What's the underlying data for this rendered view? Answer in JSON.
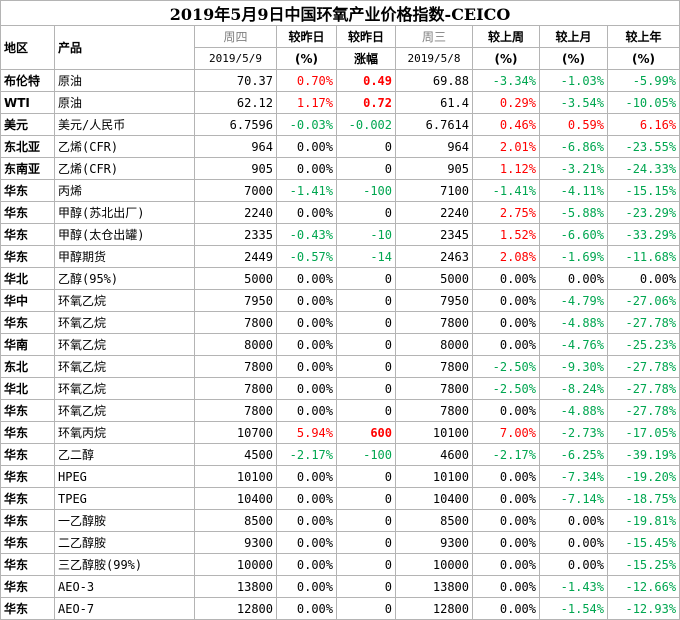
{
  "title": "2019年5月9日中国环氧产业价格指数-CEICO",
  "headers": {
    "region": "地区",
    "product": "产品",
    "day_today": "周四",
    "date_today": "2019/5/9",
    "vs_prev_pct": "较昨日",
    "vs_prev_pct_unit": "(%)",
    "vs_prev_abs": "较昨日",
    "vs_prev_abs_unit": "涨幅",
    "day_prev": "周三",
    "date_prev": "2019/5/8",
    "vs_week": "较上周",
    "vs_week_unit": "(%)",
    "vs_month": "较上月",
    "vs_month_unit": "(%)",
    "vs_year": "较上年",
    "vs_year_unit": "(%)"
  },
  "rows": [
    {
      "region": "布伦特",
      "product": "原油",
      "today": "70.37",
      "pct": "0.70%",
      "pct_sign": "pos",
      "abs": "0.49",
      "abs_sign": "pos",
      "abs_bold": true,
      "prev": "69.88",
      "week": "-3.34%",
      "week_sign": "neg",
      "month": "-1.03%",
      "month_sign": "neg",
      "year": "-5.99%",
      "year_sign": "neg"
    },
    {
      "region": "WTI",
      "product": "原油",
      "today": "62.12",
      "pct": "1.17%",
      "pct_sign": "pos",
      "abs": "0.72",
      "abs_sign": "pos",
      "abs_bold": true,
      "prev": "61.4",
      "week": "0.29%",
      "week_sign": "pos",
      "month": "-3.54%",
      "month_sign": "neg",
      "year": "-10.05%",
      "year_sign": "neg"
    },
    {
      "region": "美元",
      "product": "美元/人民币",
      "today": "6.7596",
      "pct": "-0.03%",
      "pct_sign": "neg",
      "abs": "-0.002",
      "abs_sign": "neg",
      "abs_bold": false,
      "prev": "6.7614",
      "week": "0.46%",
      "week_sign": "pos",
      "month": "0.59%",
      "month_sign": "pos",
      "year": "6.16%",
      "year_sign": "pos"
    },
    {
      "region": "东北亚",
      "product": "乙烯(CFR)",
      "today": "964",
      "pct": "0.00%",
      "pct_sign": "",
      "abs": "0",
      "abs_sign": "",
      "abs_bold": false,
      "prev": "964",
      "week": "2.01%",
      "week_sign": "pos",
      "month": "-6.86%",
      "month_sign": "neg",
      "year": "-23.55%",
      "year_sign": "neg"
    },
    {
      "region": "东南亚",
      "product": "乙烯(CFR)",
      "today": "905",
      "pct": "0.00%",
      "pct_sign": "",
      "abs": "0",
      "abs_sign": "",
      "abs_bold": false,
      "prev": "905",
      "week": "1.12%",
      "week_sign": "pos",
      "month": "-3.21%",
      "month_sign": "neg",
      "year": "-24.33%",
      "year_sign": "neg"
    },
    {
      "region": "华东",
      "product": "丙烯",
      "today": "7000",
      "pct": "-1.41%",
      "pct_sign": "neg",
      "abs": "-100",
      "abs_sign": "neg",
      "abs_bold": false,
      "prev": "7100",
      "week": "-1.41%",
      "week_sign": "neg",
      "month": "-4.11%",
      "month_sign": "neg",
      "year": "-15.15%",
      "year_sign": "neg"
    },
    {
      "region": "华东",
      "product": "甲醇(苏北出厂)",
      "today": "2240",
      "pct": "0.00%",
      "pct_sign": "",
      "abs": "0",
      "abs_sign": "",
      "abs_bold": false,
      "prev": "2240",
      "week": "2.75%",
      "week_sign": "pos",
      "month": "-5.88%",
      "month_sign": "neg",
      "year": "-23.29%",
      "year_sign": "neg"
    },
    {
      "region": "华东",
      "product": "甲醇(太仓出罐)",
      "today": "2335",
      "pct": "-0.43%",
      "pct_sign": "neg",
      "abs": "-10",
      "abs_sign": "neg",
      "abs_bold": false,
      "prev": "2345",
      "week": "1.52%",
      "week_sign": "pos",
      "month": "-6.60%",
      "month_sign": "neg",
      "year": "-33.29%",
      "year_sign": "neg"
    },
    {
      "region": "华东",
      "product": "甲醇期货",
      "today": "2449",
      "pct": "-0.57%",
      "pct_sign": "neg",
      "abs": "-14",
      "abs_sign": "neg",
      "abs_bold": false,
      "prev": "2463",
      "week": "2.08%",
      "week_sign": "pos",
      "month": "-1.69%",
      "month_sign": "neg",
      "year": "-11.68%",
      "year_sign": "neg"
    },
    {
      "region": "华北",
      "product": "乙醇(95%)",
      "today": "5000",
      "pct": "0.00%",
      "pct_sign": "",
      "abs": "0",
      "abs_sign": "",
      "abs_bold": false,
      "prev": "5000",
      "week": "0.00%",
      "week_sign": "",
      "month": "0.00%",
      "month_sign": "",
      "year": "0.00%",
      "year_sign": ""
    },
    {
      "region": "华中",
      "product": "环氧乙烷",
      "today": "7950",
      "pct": "0.00%",
      "pct_sign": "",
      "abs": "0",
      "abs_sign": "",
      "abs_bold": false,
      "prev": "7950",
      "week": "0.00%",
      "week_sign": "",
      "month": "-4.79%",
      "month_sign": "neg",
      "year": "-27.06%",
      "year_sign": "neg"
    },
    {
      "region": "华东",
      "product": "环氧乙烷",
      "today": "7800",
      "pct": "0.00%",
      "pct_sign": "",
      "abs": "0",
      "abs_sign": "",
      "abs_bold": false,
      "prev": "7800",
      "week": "0.00%",
      "week_sign": "",
      "month": "-4.88%",
      "month_sign": "neg",
      "year": "-27.78%",
      "year_sign": "neg"
    },
    {
      "region": "华南",
      "product": "环氧乙烷",
      "today": "8000",
      "pct": "0.00%",
      "pct_sign": "",
      "abs": "0",
      "abs_sign": "",
      "abs_bold": false,
      "prev": "8000",
      "week": "0.00%",
      "week_sign": "",
      "month": "-4.76%",
      "month_sign": "neg",
      "year": "-25.23%",
      "year_sign": "neg"
    },
    {
      "region": "东北",
      "product": "环氧乙烷",
      "today": "7800",
      "pct": "0.00%",
      "pct_sign": "",
      "abs": "0",
      "abs_sign": "",
      "abs_bold": false,
      "prev": "7800",
      "week": "-2.50%",
      "week_sign": "neg",
      "month": "-9.30%",
      "month_sign": "neg",
      "year": "-27.78%",
      "year_sign": "neg"
    },
    {
      "region": "华北",
      "product": "环氧乙烷",
      "today": "7800",
      "pct": "0.00%",
      "pct_sign": "",
      "abs": "0",
      "abs_sign": "",
      "abs_bold": false,
      "prev": "7800",
      "week": "-2.50%",
      "week_sign": "neg",
      "month": "-8.24%",
      "month_sign": "neg",
      "year": "-27.78%",
      "year_sign": "neg"
    },
    {
      "region": "华东",
      "product": "环氧乙烷",
      "today": "7800",
      "pct": "0.00%",
      "pct_sign": "",
      "abs": "0",
      "abs_sign": "",
      "abs_bold": false,
      "prev": "7800",
      "week": "0.00%",
      "week_sign": "",
      "month": "-4.88%",
      "month_sign": "neg",
      "year": "-27.78%",
      "year_sign": "neg"
    },
    {
      "region": "华东",
      "product": "环氧丙烷",
      "today": "10700",
      "pct": "5.94%",
      "pct_sign": "pos",
      "abs": "600",
      "abs_sign": "pos",
      "abs_bold": true,
      "prev": "10100",
      "week": "7.00%",
      "week_sign": "pos",
      "month": "-2.73%",
      "month_sign": "neg",
      "year": "-17.05%",
      "year_sign": "neg"
    },
    {
      "region": "华东",
      "product": "乙二醇",
      "today": "4500",
      "pct": "-2.17%",
      "pct_sign": "neg",
      "abs": "-100",
      "abs_sign": "neg",
      "abs_bold": false,
      "prev": "4600",
      "week": "-2.17%",
      "week_sign": "neg",
      "month": "-6.25%",
      "month_sign": "neg",
      "year": "-39.19%",
      "year_sign": "neg"
    },
    {
      "region": "华东",
      "product": "HPEG",
      "today": "10100",
      "pct": "0.00%",
      "pct_sign": "",
      "abs": "0",
      "abs_sign": "",
      "abs_bold": false,
      "prev": "10100",
      "week": "0.00%",
      "week_sign": "",
      "month": "-7.34%",
      "month_sign": "neg",
      "year": "-19.20%",
      "year_sign": "neg"
    },
    {
      "region": "华东",
      "product": "TPEG",
      "today": "10400",
      "pct": "0.00%",
      "pct_sign": "",
      "abs": "0",
      "abs_sign": "",
      "abs_bold": false,
      "prev": "10400",
      "week": "0.00%",
      "week_sign": "",
      "month": "-7.14%",
      "month_sign": "neg",
      "year": "-18.75%",
      "year_sign": "neg"
    },
    {
      "region": "华东",
      "product": "一乙醇胺",
      "today": "8500",
      "pct": "0.00%",
      "pct_sign": "",
      "abs": "0",
      "abs_sign": "",
      "abs_bold": false,
      "prev": "8500",
      "week": "0.00%",
      "week_sign": "",
      "month": "0.00%",
      "month_sign": "",
      "year": "-19.81%",
      "year_sign": "neg"
    },
    {
      "region": "华东",
      "product": "二乙醇胺",
      "today": "9300",
      "pct": "0.00%",
      "pct_sign": "",
      "abs": "0",
      "abs_sign": "",
      "abs_bold": false,
      "prev": "9300",
      "week": "0.00%",
      "week_sign": "",
      "month": "0.00%",
      "month_sign": "",
      "year": "-15.45%",
      "year_sign": "neg"
    },
    {
      "region": "华东",
      "product": "三乙醇胺(99%)",
      "today": "10000",
      "pct": "0.00%",
      "pct_sign": "",
      "abs": "0",
      "abs_sign": "",
      "abs_bold": false,
      "prev": "10000",
      "week": "0.00%",
      "week_sign": "",
      "month": "0.00%",
      "month_sign": "",
      "year": "-15.25%",
      "year_sign": "neg"
    },
    {
      "region": "华东",
      "product": "AEO-3",
      "today": "13800",
      "pct": "0.00%",
      "pct_sign": "",
      "abs": "0",
      "abs_sign": "",
      "abs_bold": false,
      "prev": "13800",
      "week": "0.00%",
      "week_sign": "",
      "month": "-1.43%",
      "month_sign": "neg",
      "year": "-12.66%",
      "year_sign": "neg"
    },
    {
      "region": "华东",
      "product": "AEO-7",
      "today": "12800",
      "pct": "0.00%",
      "pct_sign": "",
      "abs": "0",
      "abs_sign": "",
      "abs_bold": false,
      "prev": "12800",
      "week": "0.00%",
      "week_sign": "",
      "month": "-1.54%",
      "month_sign": "neg",
      "year": "-12.93%",
      "year_sign": "neg"
    }
  ]
}
